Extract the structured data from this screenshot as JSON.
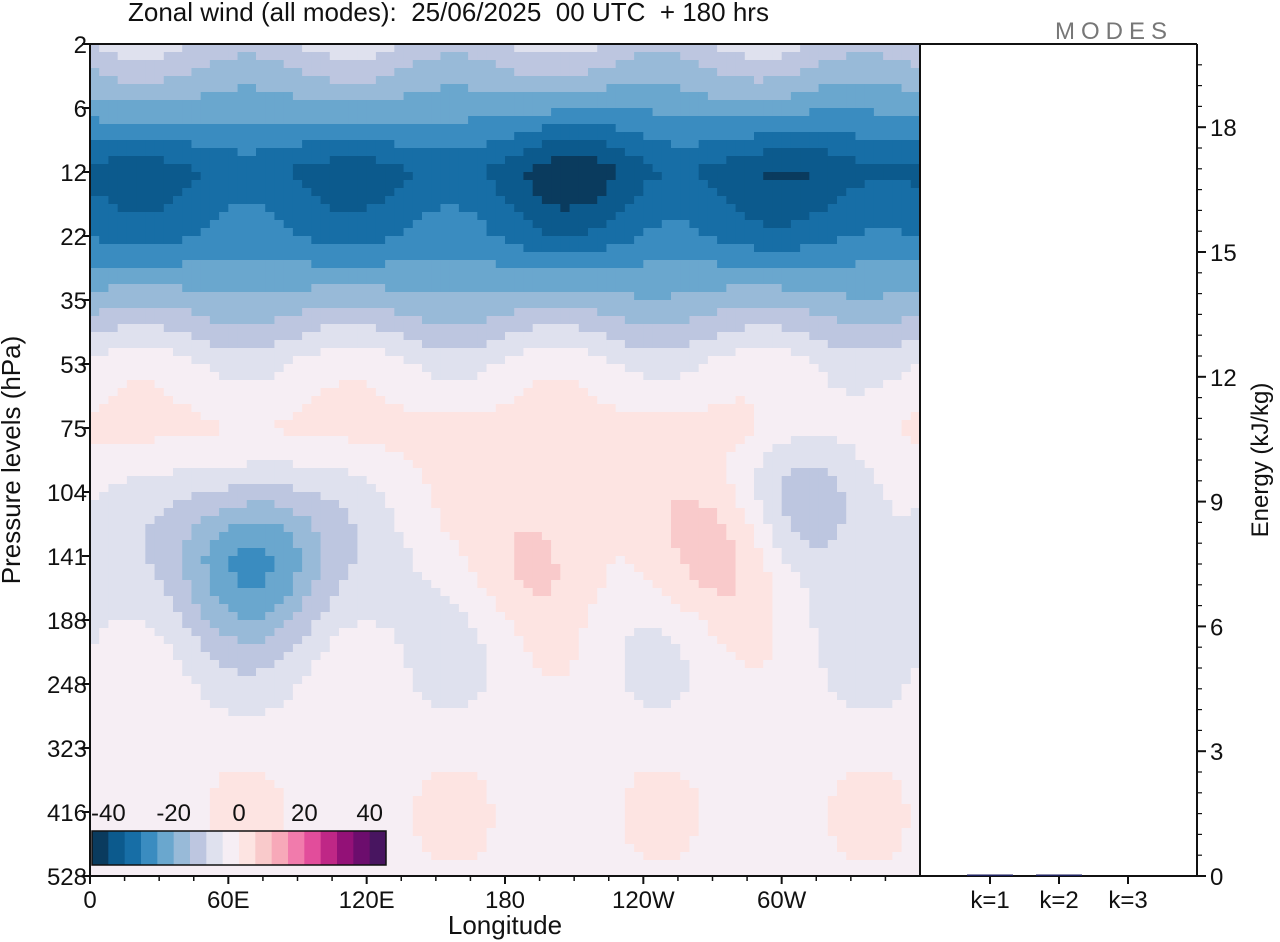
{
  "title": "Zonal wind (all modes):  25/06/2025  00 UTC  + 180 hrs",
  "brand": "MODES",
  "chart_data": [
    {
      "type": "heatmap",
      "title": "Zonal wind (all modes):  25/06/2025  00 UTC  + 180 hrs",
      "xlabel": "Longitude",
      "ylabel": "Pressure levels (hPa)",
      "x_ticks": [
        "0",
        "60E",
        "120E",
        "180",
        "120W",
        "60W"
      ],
      "y_ticks": [
        "2",
        "6",
        "12",
        "22",
        "35",
        "53",
        "75",
        "104",
        "141",
        "188",
        "248",
        "323",
        "416",
        "528"
      ],
      "colorbar": {
        "tick_labels": [
          "-40",
          "-20",
          "0",
          "20",
          "40"
        ],
        "range": [
          -45,
          45
        ],
        "step": 5,
        "colors": [
          "#0a3b5e",
          "#0c5a8d",
          "#176ea6",
          "#3a8cc0",
          "#6aa7ce",
          "#98bad8",
          "#bdc6e0",
          "#dfe1ee",
          "#f6eef4",
          "#fde4e2",
          "#f9cacb",
          "#f7a9b9",
          "#f17bac",
          "#e24d9b",
          "#bf2786",
          "#931177",
          "#6c0d6d",
          "#481560"
        ]
      },
      "bands_by_level": [
        {
          "level": "2",
          "wind": -10
        },
        {
          "level": "6",
          "wind": -22
        },
        {
          "level": "12",
          "wind": -36
        },
        {
          "level": "22",
          "wind": -30
        },
        {
          "level": "35",
          "wind": -18
        },
        {
          "level": "53",
          "wind": -4
        },
        {
          "level": "75",
          "wind": 2
        },
        {
          "level": "104",
          "wind": -3
        },
        {
          "level": "141",
          "wind": -6
        },
        {
          "level": "188",
          "wind": -6
        },
        {
          "level": "248",
          "wind": -4
        },
        {
          "level": "323",
          "wind": -2
        },
        {
          "level": "416",
          "wind": -1
        },
        {
          "level": "528",
          "wind": -2
        }
      ],
      "features": [
        {
          "lon": 70,
          "level": "141",
          "wind": -28
        },
        {
          "lon": 215,
          "level": "12",
          "wind": -42
        },
        {
          "lon": 320,
          "level": "12",
          "wind": -40
        },
        {
          "lon": 275,
          "level": "141",
          "wind": 8
        },
        {
          "lon": 195,
          "level": "141",
          "wind": 7
        },
        {
          "lon": 315,
          "level": "104",
          "wind": -14
        }
      ]
    },
    {
      "type": "bar",
      "categories": [
        "k=1",
        "k=2",
        "k=3"
      ],
      "values": [
        0.02,
        0.02,
        0.0
      ],
      "ylabel": "Energy (kJ/kg)",
      "ylim": [
        0,
        20
      ],
      "y_ticks": [
        "0",
        "3",
        "6",
        "9",
        "12",
        "15",
        "18"
      ]
    }
  ]
}
